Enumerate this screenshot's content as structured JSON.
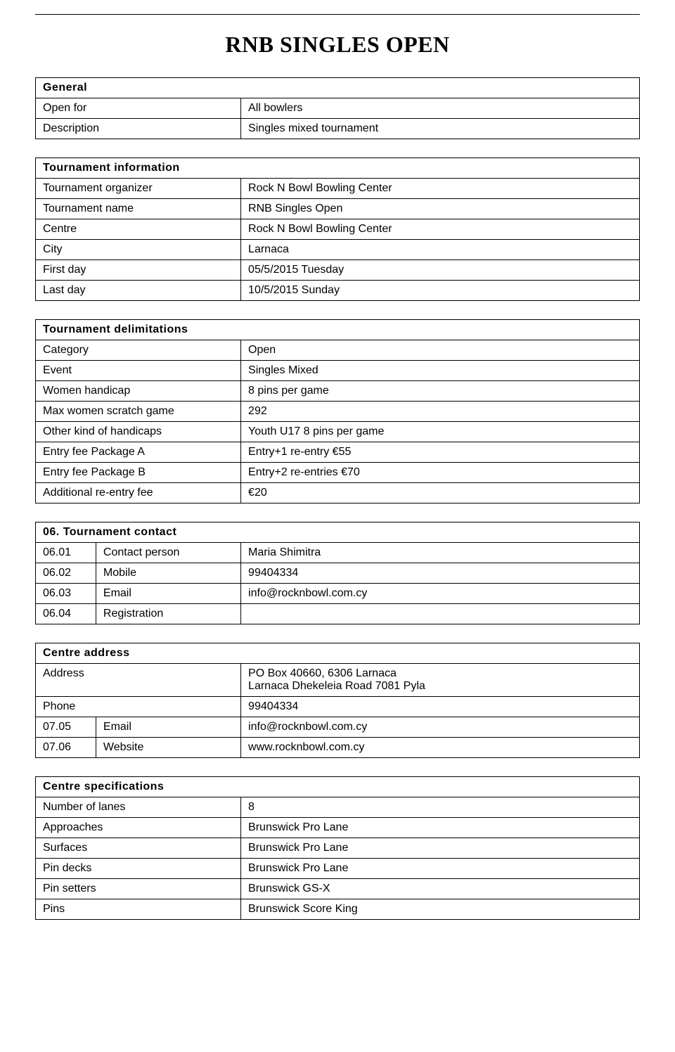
{
  "title": "RNB SINGLES OPEN",
  "general": {
    "header": "General",
    "open_for_label": "Open for",
    "open_for": "All bowlers",
    "description_label": "Description",
    "description": "Singles mixed tournament"
  },
  "tournament_info": {
    "header": "Tournament information",
    "organizer_label": "Tournament organizer",
    "organizer": "Rock N Bowl Bowling Center",
    "name_label": "Tournament name",
    "name": "RNB Singles Open",
    "centre_label": "Centre",
    "centre": "Rock N Bowl Bowling Center",
    "city_label": "City",
    "city": "Larnaca",
    "first_day_label": "First day",
    "first_day": "05/5/2015 Tuesday",
    "last_day_label": "Last day",
    "last_day": "10/5/2015 Sunday"
  },
  "delimitations": {
    "header": "Tournament delimitations",
    "category_label": "Category",
    "category": "Open",
    "event_label": "Event",
    "event": "Singles Mixed",
    "women_handicap_label": "Women handicap",
    "women_handicap": "8 pins per game",
    "max_scratch_label": "Max women scratch game",
    "max_scratch": "292",
    "other_handicaps_label": "Other kind of handicaps",
    "other_handicaps": "Youth U17 8 pins per game",
    "fee_a_label": "Entry fee Package A",
    "fee_a": "Entry+1 re-entry €55",
    "fee_b_label": "Entry fee Package B",
    "fee_b": "Entry+2 re-entries €70",
    "reentry_label": "Additional re-entry fee",
    "reentry": "€20"
  },
  "contact": {
    "header": "06. Tournament contact",
    "r1_num": "06.01",
    "r1_label": "Contact person",
    "r1_val": "Maria Shimitra",
    "r2_num": "06.02",
    "r2_label": "Mobile",
    "r2_val": "99404334",
    "r3_num": "06.03",
    "r3_label": "Email",
    "r3_val": "info@rocknbowl.com.cy",
    "r4_num": "06.04",
    "r4_label": "Registration",
    "r4_val": ""
  },
  "centre_address": {
    "header": "Centre address",
    "address_label": "Address",
    "address_line1": "PO Box 40660, 6306 Larnaca",
    "address_line2": "Larnaca Dhekeleia Road 7081 Pyla",
    "phone_label": "Phone",
    "phone": "99404334",
    "email_num": "07.05",
    "email_label": "Email",
    "email": "info@rocknbowl.com.cy",
    "web_num": "07.06",
    "web_label": "Website",
    "web": "www.rocknbowl.com.cy"
  },
  "centre_spec": {
    "header": "Centre specifications",
    "lanes_label": "Number of lanes",
    "lanes": "8",
    "approaches_label": "Approaches",
    "approaches": "Brunswick Pro Lane",
    "surfaces_label": "Surfaces",
    "surfaces": "Brunswick Pro Lane",
    "pindecks_label": "Pin decks",
    "pindecks": "Brunswick Pro Lane",
    "pinsetters_label": "Pin setters",
    "pinsetters": "Brunswick GS-X",
    "pins_label": "Pins",
    "pins": "Brunswick Score King"
  }
}
